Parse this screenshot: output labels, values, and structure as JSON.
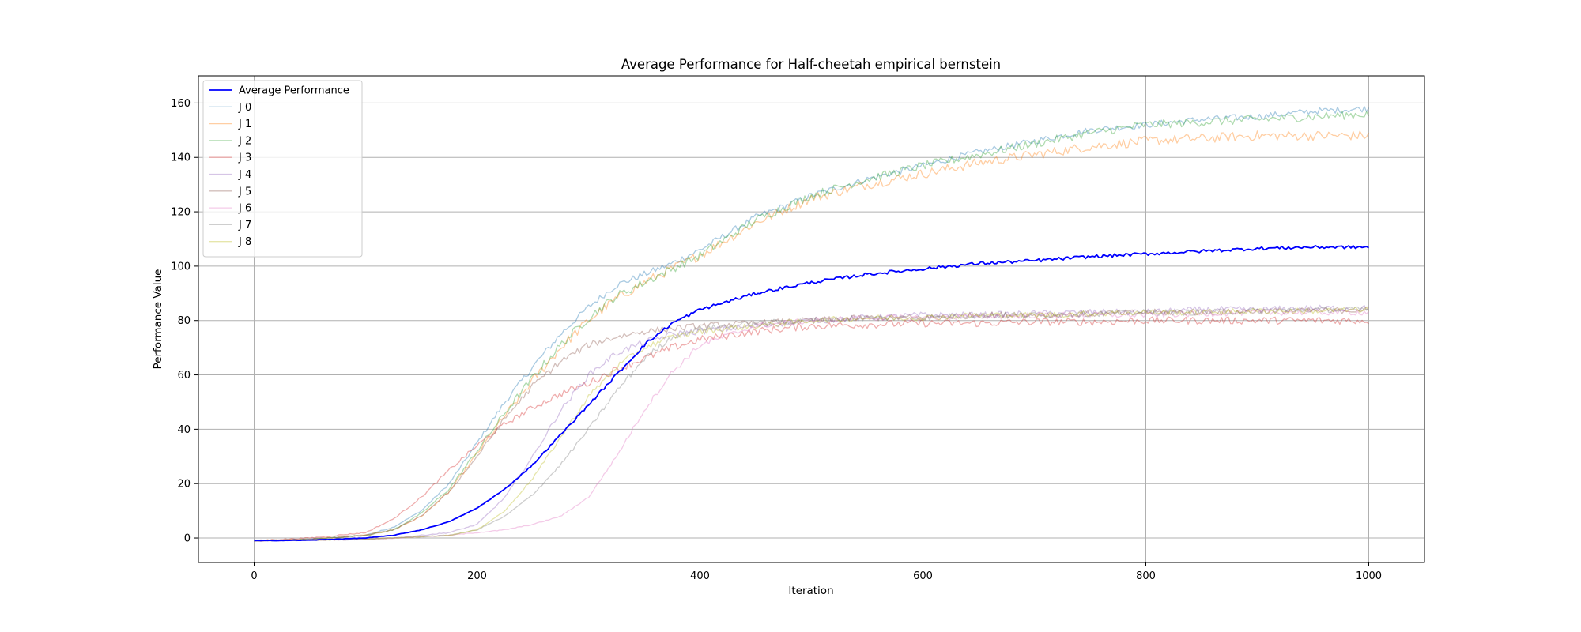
{
  "chart_data": {
    "type": "line",
    "title": "Average Performance for Half-cheetah empirical bernstein",
    "xlabel": "Iteration",
    "ylabel": "Performance Value",
    "xlim": [
      -50,
      1050
    ],
    "ylim": [
      -9,
      170
    ],
    "xticks": [
      0,
      200,
      400,
      600,
      800,
      1000
    ],
    "yticks": [
      0,
      20,
      40,
      60,
      80,
      100,
      120,
      140,
      160
    ],
    "grid": true,
    "legend_position": "top-left",
    "x": [
      0,
      50,
      100,
      125,
      150,
      175,
      200,
      225,
      250,
      275,
      300,
      325,
      350,
      375,
      400,
      450,
      500,
      550,
      600,
      650,
      700,
      750,
      800,
      850,
      900,
      950,
      1000
    ],
    "series": [
      {
        "name": "Average Performance",
        "color": "#0000ff",
        "opacity": 1.0,
        "width": 1.8,
        "noise": 0.6,
        "values": [
          -1,
          -0.8,
          0,
          1,
          3,
          6,
          11,
          18,
          27,
          38,
          49,
          60,
          71,
          79,
          84,
          90,
          94,
          97,
          99,
          101,
          102,
          103.5,
          104.5,
          105.5,
          106.5,
          107,
          107
        ]
      },
      {
        "name": "J 0",
        "color": "#1f77b4",
        "opacity": 0.38,
        "width": 1.3,
        "noise": 1.2,
        "values": [
          -1,
          -0.5,
          1,
          4,
          10,
          20,
          35,
          50,
          63,
          75,
          85,
          93,
          97,
          101,
          106,
          118,
          126,
          132,
          137,
          142,
          146,
          150,
          152,
          154,
          155,
          157,
          158
        ]
      },
      {
        "name": "J 1",
        "color": "#ff7f0e",
        "opacity": 0.38,
        "width": 1.3,
        "noise": 1.8,
        "values": [
          -1,
          -0.5,
          1,
          3,
          8,
          17,
          31,
          45,
          58,
          70,
          80,
          88,
          94,
          99,
          104,
          116,
          125,
          130,
          134,
          138,
          141,
          144,
          146,
          147,
          148,
          148,
          148
        ]
      },
      {
        "name": "J 2",
        "color": "#2ca02c",
        "opacity": 0.38,
        "width": 1.3,
        "noise": 1.6,
        "values": [
          -1,
          -0.5,
          1,
          3,
          9,
          18,
          32,
          46,
          59,
          71,
          81,
          89,
          94,
          99,
          104,
          117,
          126,
          132,
          137,
          141,
          145,
          149,
          152,
          153,
          154,
          155,
          156
        ]
      },
      {
        "name": "J 3",
        "color": "#d62728",
        "opacity": 0.38,
        "width": 1.3,
        "noise": 1.4,
        "values": [
          -1,
          0,
          2,
          7,
          15,
          25,
          34,
          42,
          48,
          53,
          57,
          62,
          66,
          70,
          73,
          76,
          78,
          78.5,
          79,
          79,
          79.5,
          79.5,
          80,
          80,
          80,
          80,
          80
        ]
      },
      {
        "name": "J 4",
        "color": "#9467bd",
        "opacity": 0.38,
        "width": 1.3,
        "noise": 1.2,
        "values": [
          -1,
          -0.8,
          -0.5,
          0,
          1,
          2,
          5,
          15,
          30,
          47,
          60,
          68,
          72,
          75,
          76,
          78,
          80,
          81,
          82,
          82,
          82.5,
          83,
          83,
          84,
          84,
          84.5,
          84.5
        ]
      },
      {
        "name": "J 5",
        "color": "#8c564b",
        "opacity": 0.38,
        "width": 1.3,
        "noise": 1.2,
        "values": [
          -1,
          -0.5,
          1,
          3,
          8,
          17,
          30,
          44,
          56,
          65,
          71,
          74,
          76,
          77,
          78,
          79,
          80,
          81,
          81,
          82,
          82,
          82.5,
          83,
          83,
          83.5,
          83.5,
          84
        ]
      },
      {
        "name": "J 6",
        "color": "#e377c2",
        "opacity": 0.38,
        "width": 1.3,
        "noise": 1.1,
        "values": [
          -1,
          -0.8,
          -0.5,
          0,
          0.5,
          1,
          2,
          3,
          5,
          8,
          15,
          30,
          47,
          61,
          71,
          78,
          80,
          81,
          81,
          81.5,
          82,
          82,
          82,
          82.5,
          83,
          83,
          83
        ]
      },
      {
        "name": "J 7",
        "color": "#7f7f7f",
        "opacity": 0.38,
        "width": 1.3,
        "noise": 1.1,
        "values": [
          -1,
          -0.8,
          -0.5,
          0,
          0.5,
          1,
          3,
          8,
          16,
          27,
          40,
          54,
          66,
          74,
          77,
          79,
          80,
          81,
          81,
          82,
          82,
          82.5,
          83,
          83,
          83.5,
          84,
          84
        ]
      },
      {
        "name": "J 8",
        "color": "#bcbd22",
        "opacity": 0.38,
        "width": 1.3,
        "noise": 1.1,
        "values": [
          -1,
          -0.8,
          -0.5,
          0,
          0.5,
          1,
          3,
          10,
          22,
          37,
          52,
          63,
          70,
          74,
          76,
          78,
          80,
          81,
          81,
          82,
          82,
          82.5,
          83,
          83,
          83.5,
          83.5,
          84
        ]
      }
    ]
  }
}
